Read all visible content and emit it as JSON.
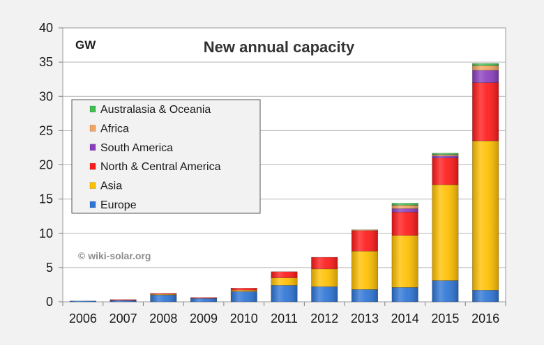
{
  "chart_data": {
    "type": "bar",
    "stacked": true,
    "title": "New annual capacity",
    "unit_label": "GW",
    "watermark": "© wiki-solar.org",
    "categories": [
      "2006",
      "2007",
      "2008",
      "2009",
      "2010",
      "2011",
      "2012",
      "2013",
      "2014",
      "2015",
      "2016"
    ],
    "ylim": [
      0,
      40
    ],
    "yticks": [
      0,
      5,
      10,
      15,
      20,
      25,
      30,
      35,
      40
    ],
    "grid": true,
    "legend_position": "left",
    "series": [
      {
        "name": "Europe",
        "color": "#2e75d6",
        "values": [
          0.1,
          0.2,
          1.0,
          0.5,
          1.5,
          2.4,
          2.2,
          1.8,
          2.1,
          3.1,
          1.7
        ]
      },
      {
        "name": "Asia",
        "color": "#ffc000",
        "values": [
          0.0,
          0.0,
          0.1,
          0.0,
          0.2,
          1.1,
          2.6,
          5.6,
          7.6,
          14.0,
          21.8
        ]
      },
      {
        "name": "North & Central America",
        "color": "#ff1a1a",
        "values": [
          0.0,
          0.1,
          0.1,
          0.1,
          0.3,
          0.9,
          1.7,
          3.0,
          3.4,
          3.9,
          8.5
        ]
      },
      {
        "name": "South America",
        "color": "#8b3fbf",
        "values": [
          0.0,
          0.0,
          0.0,
          0.0,
          0.0,
          0.0,
          0.0,
          0.0,
          0.5,
          0.3,
          1.8
        ]
      },
      {
        "name": "Africa",
        "color": "#f2a560",
        "values": [
          0.0,
          0.0,
          0.0,
          0.0,
          0.0,
          0.0,
          0.0,
          0.1,
          0.5,
          0.2,
          0.7
        ]
      },
      {
        "name": "Australasia & Oceania",
        "color": "#3fbf4f",
        "values": [
          0.0,
          0.0,
          0.0,
          0.0,
          0.0,
          0.0,
          0.0,
          0.0,
          0.3,
          0.2,
          0.3
        ]
      }
    ],
    "legend_order": [
      "Australasia & Oceania",
      "Africa",
      "South America",
      "North & Central America",
      "Asia",
      "Europe"
    ]
  }
}
